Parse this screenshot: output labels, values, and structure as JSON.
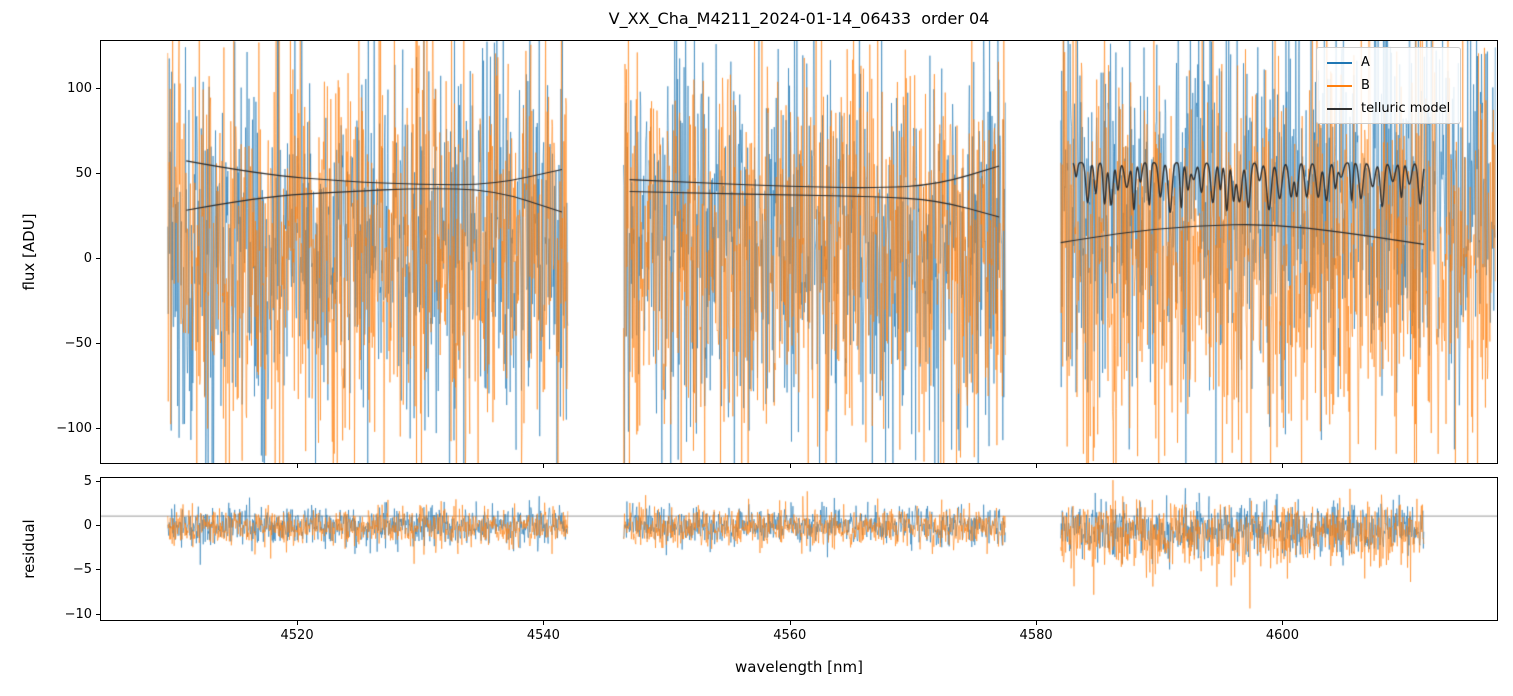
{
  "chart_data": {
    "type": "line",
    "title": "V_XX_Cha_M4211_2024-01-14_06433  order 04",
    "xlabel": "wavelength [nm]",
    "xlim": [
      4504,
      4617.5
    ],
    "xticks": [
      4520,
      4540,
      4560,
      4580,
      4600
    ],
    "panels": [
      {
        "id": "flux",
        "ylabel": "flux [ADU]",
        "ylim": [
          -121,
          128
        ],
        "yticks": [
          100,
          50,
          0,
          -50,
          -100
        ]
      },
      {
        "id": "residual",
        "ylabel": "residual",
        "ylim": [
          -10.8,
          5.4
        ],
        "yticks": [
          5,
          0,
          -5,
          -10
        ]
      }
    ],
    "legend": [
      {
        "label": "A",
        "color": "#1f77b4"
      },
      {
        "label": "B",
        "color": "#ff7f0e"
      },
      {
        "label": "telluric model",
        "color": "#2f2f2f"
      }
    ],
    "colors": {
      "A": "#1f77b4",
      "B": "#ff7f0e",
      "model": "#2f2f2f",
      "hline": "#999999"
    },
    "noise_step_nm": 0.04,
    "flux_noise_segments": [
      {
        "x0": 4509.5,
        "x1": 4542.0,
        "A": {
          "mean": 8,
          "std": 56
        },
        "B": {
          "mean": 6,
          "std": 58
        }
      },
      {
        "x0": 4546.5,
        "x1": 4577.5,
        "A": {
          "mean": 8,
          "std": 56
        },
        "B": {
          "mean": 6,
          "std": 58
        }
      },
      {
        "x0": 4582.0,
        "x1": 4617.3,
        "A": {
          "mean": 26,
          "std": 54
        },
        "B": {
          "mean": -4,
          "std": 60
        }
      }
    ],
    "residual_noise_segments": [
      {
        "x0": 4509.5,
        "x1": 4542.0,
        "A": {
          "mean": -0.1,
          "std": 1.05
        },
        "B": {
          "mean": -0.2,
          "std": 1.05
        }
      },
      {
        "x0": 4546.5,
        "x1": 4577.5,
        "A": {
          "mean": -0.1,
          "std": 1.05
        },
        "B": {
          "mean": -0.3,
          "std": 1.1
        }
      },
      {
        "x0": 4582.0,
        "x1": 4611.5,
        "A": {
          "mean": 0,
          "std": 1.4,
          "skew": 0.5
        },
        "B": {
          "mean": 0.5,
          "std": 1.5,
          "skew": 2.0
        }
      }
    ],
    "model_curves": [
      {
        "points": [
          [
            4511,
            57
          ],
          [
            4517,
            49
          ],
          [
            4524,
            45
          ],
          [
            4530,
            43
          ],
          [
            4536,
            43
          ],
          [
            4541.5,
            52
          ]
        ]
      },
      {
        "points": [
          [
            4511,
            28
          ],
          [
            4517,
            36
          ],
          [
            4524,
            39
          ],
          [
            4530,
            41
          ],
          [
            4536,
            40
          ],
          [
            4541.5,
            27
          ]
        ]
      },
      {
        "points": [
          [
            4547,
            46
          ],
          [
            4553,
            44
          ],
          [
            4560,
            42
          ],
          [
            4567,
            41
          ],
          [
            4572,
            43
          ],
          [
            4577,
            54
          ]
        ]
      },
      {
        "points": [
          [
            4547,
            39
          ],
          [
            4553,
            38
          ],
          [
            4560,
            37
          ],
          [
            4567,
            36
          ],
          [
            4572,
            34
          ],
          [
            4577,
            24
          ]
        ]
      },
      {
        "points": [
          [
            4582,
            9
          ],
          [
            4587,
            15
          ],
          [
            4593,
            19
          ],
          [
            4599,
            20
          ],
          [
            4605,
            15
          ],
          [
            4611.5,
            8
          ]
        ]
      }
    ],
    "telluric_absorption": {
      "x0": 4583,
      "x1": 4611.5,
      "continuum": 56,
      "spacing": 0.7,
      "depth_min": 8,
      "depth_max": 30,
      "width": 0.18
    },
    "residual_hline": 1
  }
}
